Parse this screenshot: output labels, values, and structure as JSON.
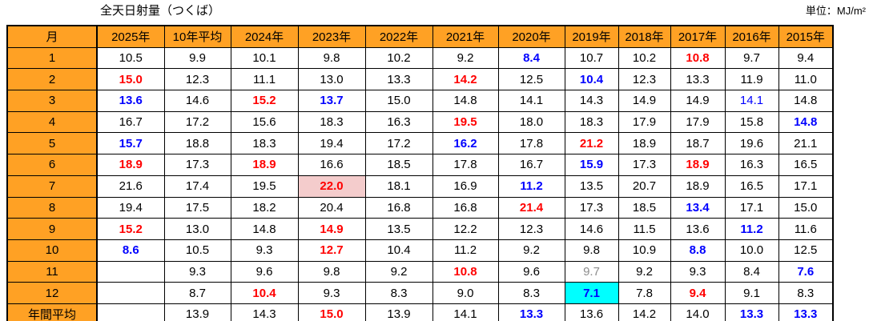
{
  "title": "全天日射量（つくば）",
  "unit_label": "単位：MJ/m²",
  "colors": {
    "header_bg": "#FFA124",
    "text_red": "#FF0000",
    "text_blue": "#0000FF",
    "text_gray": "#8C8C8C",
    "bg_pink": "#F4CCCC",
    "bg_cyan": "#00FFFF"
  },
  "chart_data": {
    "type": "table",
    "title": "全天日射量（つくば）",
    "unit": "MJ/m²",
    "columns": [
      "月",
      "2025年",
      "10年平均",
      "2024年",
      "2023年",
      "2022年",
      "2021年",
      "2020年",
      "2019年",
      "2018年",
      "2017年",
      "2016年",
      "2015年"
    ],
    "cell_format": "[value, text_style(red|blue|blue-plain|gray), bg(pink|cyan)]",
    "rows": [
      {
        "label": "1",
        "cells": [
          [
            "10.5"
          ],
          [
            "9.9"
          ],
          [
            "10.1"
          ],
          [
            "9.8"
          ],
          [
            "10.2"
          ],
          [
            "9.2"
          ],
          [
            "8.4",
            "blue"
          ],
          [
            "10.7"
          ],
          [
            "10.2"
          ],
          [
            "10.8",
            "red"
          ],
          [
            "9.7"
          ],
          [
            "9.4"
          ]
        ]
      },
      {
        "label": "2",
        "cells": [
          [
            "15.0",
            "red"
          ],
          [
            "12.3"
          ],
          [
            "11.1"
          ],
          [
            "13.0"
          ],
          [
            "13.3"
          ],
          [
            "14.2",
            "red"
          ],
          [
            "12.5"
          ],
          [
            "10.4",
            "blue"
          ],
          [
            "12.3"
          ],
          [
            "13.3"
          ],
          [
            "11.9"
          ],
          [
            "11.0"
          ]
        ]
      },
      {
        "label": "3",
        "cells": [
          [
            "13.6",
            "blue"
          ],
          [
            "14.6"
          ],
          [
            "15.2",
            "red"
          ],
          [
            "13.7",
            "blue"
          ],
          [
            "15.0"
          ],
          [
            "14.8"
          ],
          [
            "14.1"
          ],
          [
            "14.3"
          ],
          [
            "14.9"
          ],
          [
            "14.9"
          ],
          [
            "14.1",
            "blue-plain"
          ],
          [
            "14.8"
          ]
        ]
      },
      {
        "label": "4",
        "cells": [
          [
            "16.7"
          ],
          [
            "17.2"
          ],
          [
            "15.6"
          ],
          [
            "18.3"
          ],
          [
            "16.3"
          ],
          [
            "19.5",
            "red"
          ],
          [
            "18.0"
          ],
          [
            "18.3"
          ],
          [
            "17.9"
          ],
          [
            "17.9"
          ],
          [
            "15.8"
          ],
          [
            "14.8",
            "blue"
          ]
        ]
      },
      {
        "label": "5",
        "cells": [
          [
            "15.7",
            "blue"
          ],
          [
            "18.8"
          ],
          [
            "18.3"
          ],
          [
            "19.4"
          ],
          [
            "17.2"
          ],
          [
            "16.2",
            "blue"
          ],
          [
            "17.8"
          ],
          [
            "21.2",
            "red"
          ],
          [
            "18.9"
          ],
          [
            "18.7"
          ],
          [
            "19.6"
          ],
          [
            "21.1"
          ]
        ]
      },
      {
        "label": "6",
        "cells": [
          [
            "18.9",
            "red"
          ],
          [
            "17.3"
          ],
          [
            "18.9",
            "red"
          ],
          [
            "16.6"
          ],
          [
            "18.5"
          ],
          [
            "17.8"
          ],
          [
            "16.7"
          ],
          [
            "15.9",
            "blue"
          ],
          [
            "17.3"
          ],
          [
            "18.9",
            "red"
          ],
          [
            "16.3"
          ],
          [
            "16.5"
          ]
        ]
      },
      {
        "label": "7",
        "cells": [
          [
            "21.6"
          ],
          [
            "17.4"
          ],
          [
            "19.5"
          ],
          [
            "22.0",
            "red",
            "pink"
          ],
          [
            "18.1"
          ],
          [
            "16.9"
          ],
          [
            "11.2",
            "blue"
          ],
          [
            "13.5"
          ],
          [
            "20.7"
          ],
          [
            "18.9"
          ],
          [
            "16.5"
          ],
          [
            "17.1"
          ]
        ]
      },
      {
        "label": "8",
        "cells": [
          [
            "19.4"
          ],
          [
            "17.5"
          ],
          [
            "18.2"
          ],
          [
            "20.4"
          ],
          [
            "16.8"
          ],
          [
            "16.8"
          ],
          [
            "21.4",
            "red"
          ],
          [
            "17.3"
          ],
          [
            "18.5"
          ],
          [
            "13.4",
            "blue"
          ],
          [
            "17.1"
          ],
          [
            "15.0"
          ]
        ]
      },
      {
        "label": "9",
        "cells": [
          [
            "15.2",
            "red"
          ],
          [
            "13.0"
          ],
          [
            "14.8"
          ],
          [
            "14.9",
            "red"
          ],
          [
            "13.5"
          ],
          [
            "12.2"
          ],
          [
            "12.3"
          ],
          [
            "14.6"
          ],
          [
            "11.5"
          ],
          [
            "13.6"
          ],
          [
            "11.2",
            "blue"
          ],
          [
            "11.6"
          ]
        ]
      },
      {
        "label": "10",
        "cells": [
          [
            "8.6",
            "blue"
          ],
          [
            "10.5"
          ],
          [
            "9.3"
          ],
          [
            "12.7",
            "red"
          ],
          [
            "10.4"
          ],
          [
            "11.2"
          ],
          [
            "9.2"
          ],
          [
            "9.8"
          ],
          [
            "10.9"
          ],
          [
            "8.8",
            "blue"
          ],
          [
            "10.0"
          ],
          [
            "12.5"
          ]
        ]
      },
      {
        "label": "11",
        "cells": [
          [
            ""
          ],
          [
            "9.3"
          ],
          [
            "9.6"
          ],
          [
            "9.8"
          ],
          [
            "9.2"
          ],
          [
            "10.8",
            "red"
          ],
          [
            "9.6"
          ],
          [
            "9.7",
            "gray"
          ],
          [
            "9.2"
          ],
          [
            "9.3"
          ],
          [
            "8.4"
          ],
          [
            "7.6",
            "blue"
          ]
        ]
      },
      {
        "label": "12",
        "cells": [
          [
            ""
          ],
          [
            "8.7"
          ],
          [
            "10.4",
            "red"
          ],
          [
            "9.3"
          ],
          [
            "8.3"
          ],
          [
            "9.0"
          ],
          [
            "8.3"
          ],
          [
            "7.1",
            "blue",
            "cyan"
          ],
          [
            "7.8"
          ],
          [
            "9.4",
            "red"
          ],
          [
            "9.1"
          ],
          [
            "8.3"
          ]
        ]
      },
      {
        "label": "年間平均",
        "cells": [
          [
            ""
          ],
          [
            "13.9"
          ],
          [
            "14.3"
          ],
          [
            "15.0",
            "red"
          ],
          [
            "13.9"
          ],
          [
            "14.1"
          ],
          [
            "13.3",
            "blue"
          ],
          [
            "13.6"
          ],
          [
            "14.2"
          ],
          [
            "14.0"
          ],
          [
            "13.3",
            "blue"
          ],
          [
            "13.3",
            "blue"
          ]
        ]
      }
    ]
  }
}
